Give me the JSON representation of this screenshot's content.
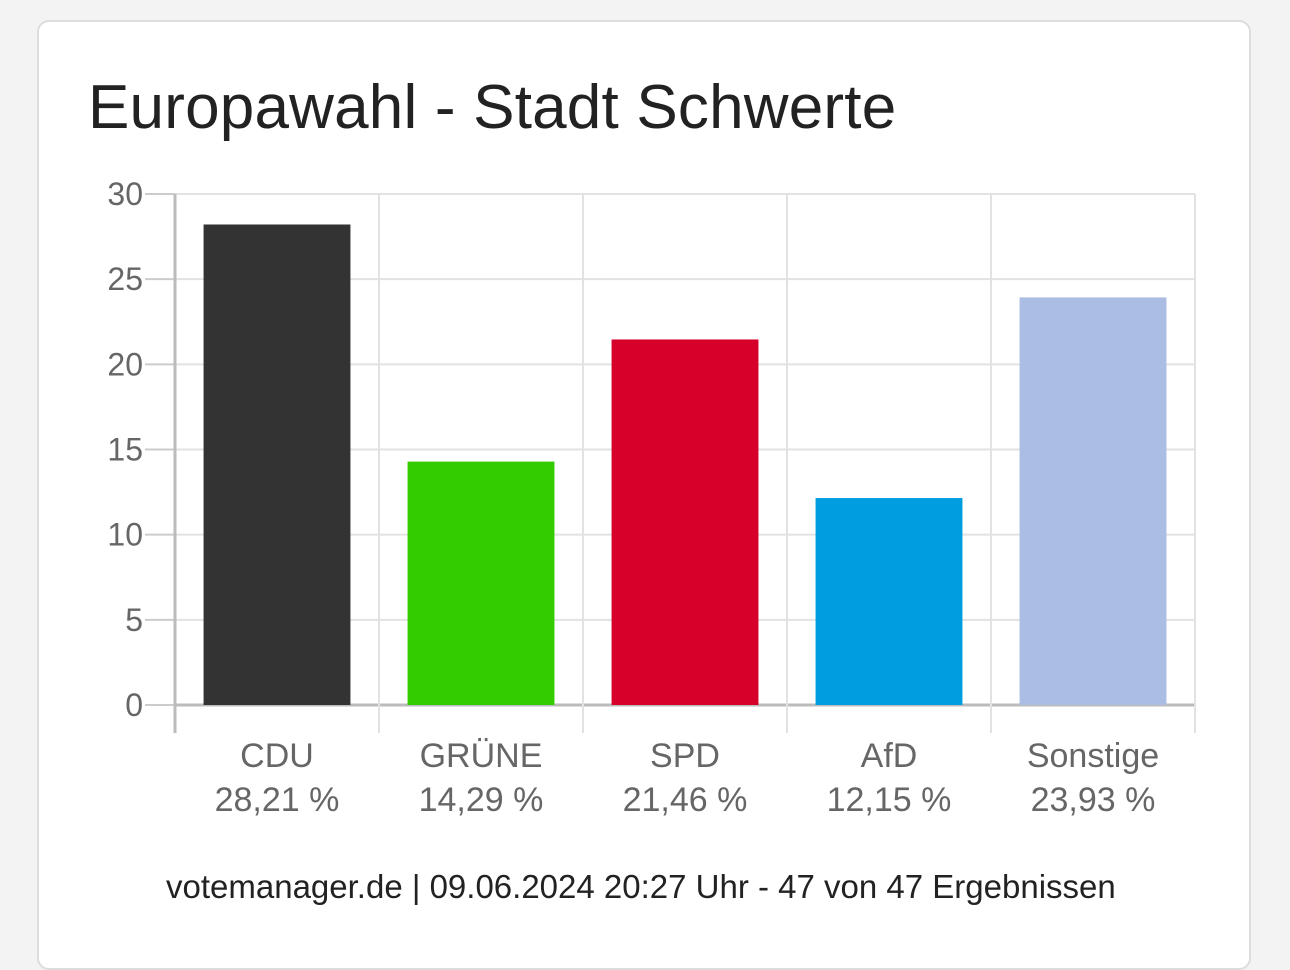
{
  "title": "Europawahl - Stadt Schwerte",
  "footer": "votemanager.de | 09.06.2024 20:27 Uhr - 47 von 47 Ergebnissen",
  "chart_data": {
    "type": "bar",
    "title": "Europawahl - Stadt Schwerte",
    "categories": [
      "CDU",
      "GRÜNE",
      "SPD",
      "AfD",
      "Sonstige"
    ],
    "value_labels": [
      "28,21 %",
      "14,29 %",
      "21,46 %",
      "12,15 %",
      "23,93 %"
    ],
    "values": [
      28.21,
      14.29,
      21.46,
      12.15,
      23.93
    ],
    "colors": [
      "#333333",
      "#33cc00",
      "#d6002a",
      "#009ee0",
      "#abbde3"
    ],
    "ylim": [
      0,
      30
    ],
    "yticks": [
      0,
      5,
      10,
      15,
      20,
      25,
      30
    ],
    "grid": true,
    "xlabel": "",
    "ylabel": ""
  }
}
